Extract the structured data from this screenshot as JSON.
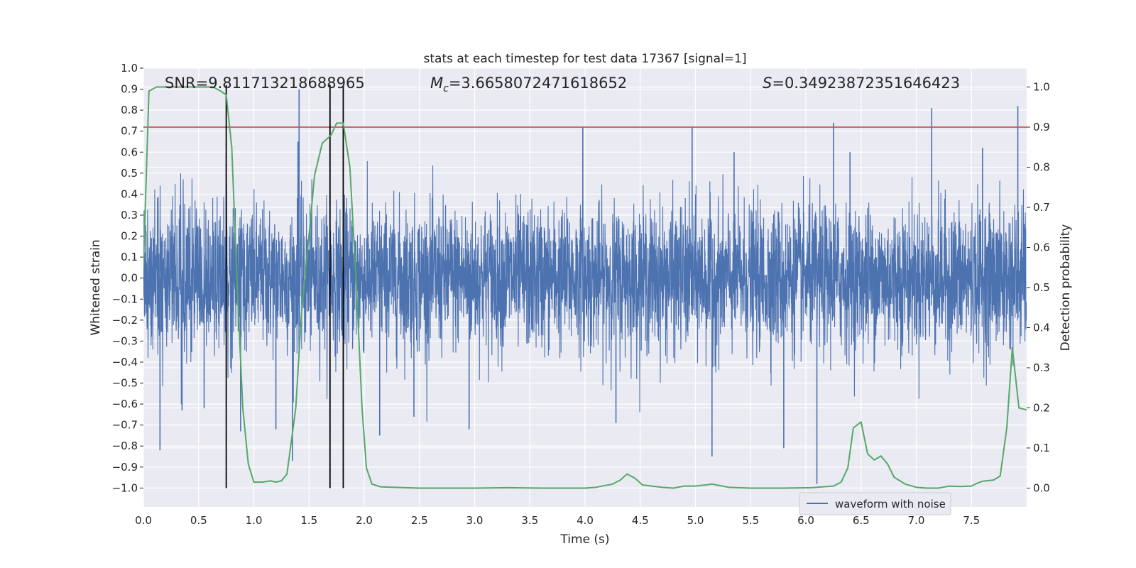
{
  "chart_data": {
    "type": "line",
    "title": "stats at each timestep for test data 17367 [signal=1]",
    "xlabel": "Time (s)",
    "ylabel": "Whitened strain",
    "y2label": "Detection probability",
    "xlim": [
      0,
      8
    ],
    "ylim": [
      -1.09,
      1.0
    ],
    "y2lim": [
      -0.047,
      1.047
    ],
    "grid": true,
    "legend_placement": "bottom-right",
    "xticks": [
      "0.0",
      "0.5",
      "1.0",
      "1.5",
      "2.0",
      "2.5",
      "3.0",
      "3.5",
      "4.0",
      "4.5",
      "5.0",
      "5.5",
      "6.0",
      "6.5",
      "7.0",
      "7.5"
    ],
    "yticks": [
      "1.0",
      "0.9",
      "0.8",
      "0.7",
      "0.6",
      "0.5",
      "0.4",
      "0.3",
      "0.2",
      "0.1",
      "0.0",
      "−0.1",
      "−0.2",
      "−0.3",
      "−0.4",
      "−0.5",
      "−0.6",
      "−0.7",
      "−0.8",
      "−0.9",
      "−1.0"
    ],
    "y2ticks": [
      "1.0",
      "0.9",
      "0.8",
      "0.7",
      "0.6",
      "0.5",
      "0.4",
      "0.3",
      "0.2",
      "0.1",
      "0.0"
    ],
    "annotations": {
      "snr": "SNR=9.811713218688965",
      "mc_symbol": "M",
      "mc_sub": "c",
      "mc_value": "=3.6658072471618652",
      "s_symbol": "S",
      "s_value": "=0.34923872351646423"
    },
    "threshold": {
      "axis": "y2",
      "value": 0.9,
      "color": "#c44e52"
    },
    "vertical_lines": [
      0.75,
      1.69,
      1.81
    ],
    "series": [
      {
        "name": "waveform with noise",
        "axis": "y",
        "color": "#4c72b0",
        "note": "dense noisy strain trace, envelope approx ±0.3 with spikes",
        "spikes": [
          {
            "t": 0.15,
            "v": -0.82
          },
          {
            "t": 0.35,
            "v": -0.63
          },
          {
            "t": 0.55,
            "v": -0.62
          },
          {
            "t": 0.75,
            "v": 0.6
          },
          {
            "t": 0.88,
            "v": -0.73
          },
          {
            "t": 1.2,
            "v": -0.72
          },
          {
            "t": 1.35,
            "v": -0.87
          },
          {
            "t": 1.41,
            "v": 0.9
          },
          {
            "t": 1.4,
            "v": 0.65
          },
          {
            "t": 2.14,
            "v": -0.75
          },
          {
            "t": 2.45,
            "v": -0.66
          },
          {
            "t": 2.95,
            "v": -0.72
          },
          {
            "t": 3.98,
            "v": 0.72
          },
          {
            "t": 4.28,
            "v": -0.69
          },
          {
            "t": 4.97,
            "v": 0.72
          },
          {
            "t": 5.15,
            "v": -0.85
          },
          {
            "t": 5.8,
            "v": -0.81
          },
          {
            "t": 5.35,
            "v": 0.6
          },
          {
            "t": 6.1,
            "v": -0.98
          },
          {
            "t": 6.25,
            "v": 0.74
          },
          {
            "t": 7.14,
            "v": 0.81
          },
          {
            "t": 7.92,
            "v": 0.82
          },
          {
            "t": 6.4,
            "v": 0.6
          },
          {
            "t": 7.6,
            "v": 0.62
          }
        ]
      },
      {
        "name": "",
        "axis": "y2",
        "color": "#55a868",
        "points": [
          [
            0.0,
            0.55
          ],
          [
            0.05,
            0.99
          ],
          [
            0.12,
            1.0
          ],
          [
            0.3,
            1.0
          ],
          [
            0.5,
            1.0
          ],
          [
            0.63,
            1.0
          ],
          [
            0.7,
            0.99
          ],
          [
            0.75,
            0.98
          ],
          [
            0.8,
            0.85
          ],
          [
            0.85,
            0.5
          ],
          [
            0.9,
            0.2
          ],
          [
            0.95,
            0.06
          ],
          [
            1.0,
            0.015
          ],
          [
            1.08,
            0.015
          ],
          [
            1.15,
            0.018
          ],
          [
            1.2,
            0.015
          ],
          [
            1.25,
            0.018
          ],
          [
            1.3,
            0.035
          ],
          [
            1.38,
            0.2
          ],
          [
            1.43,
            0.43
          ],
          [
            1.5,
            0.63
          ],
          [
            1.55,
            0.78
          ],
          [
            1.62,
            0.86
          ],
          [
            1.7,
            0.88
          ],
          [
            1.75,
            0.91
          ],
          [
            1.81,
            0.91
          ],
          [
            1.87,
            0.8
          ],
          [
            1.93,
            0.5
          ],
          [
            1.98,
            0.2
          ],
          [
            2.02,
            0.05
          ],
          [
            2.07,
            0.01
          ],
          [
            2.15,
            0.003
          ],
          [
            2.5,
            0.0
          ],
          [
            3.0,
            0.0
          ],
          [
            3.3,
            0.001
          ],
          [
            3.6,
            0.0
          ],
          [
            4.0,
            0.0
          ],
          [
            4.1,
            0.002
          ],
          [
            4.25,
            0.01
          ],
          [
            4.32,
            0.02
          ],
          [
            4.38,
            0.035
          ],
          [
            4.45,
            0.025
          ],
          [
            4.52,
            0.008
          ],
          [
            4.6,
            0.005
          ],
          [
            4.7,
            0.002
          ],
          [
            4.8,
            0.0
          ],
          [
            4.9,
            0.005
          ],
          [
            5.0,
            0.005
          ],
          [
            5.1,
            0.008
          ],
          [
            5.15,
            0.01
          ],
          [
            5.3,
            0.002
          ],
          [
            5.5,
            0.0
          ],
          [
            5.8,
            0.0
          ],
          [
            6.05,
            0.001
          ],
          [
            6.15,
            0.003
          ],
          [
            6.25,
            0.005
          ],
          [
            6.32,
            0.015
          ],
          [
            6.38,
            0.05
          ],
          [
            6.43,
            0.15
          ],
          [
            6.5,
            0.165
          ],
          [
            6.56,
            0.085
          ],
          [
            6.62,
            0.07
          ],
          [
            6.68,
            0.08
          ],
          [
            6.74,
            0.06
          ],
          [
            6.8,
            0.027
          ],
          [
            6.9,
            0.01
          ],
          [
            7.0,
            0.002
          ],
          [
            7.1,
            0.0
          ],
          [
            7.2,
            0.0
          ],
          [
            7.3,
            0.005
          ],
          [
            7.4,
            0.004
          ],
          [
            7.5,
            0.005
          ],
          [
            7.55,
            0.012
          ],
          [
            7.6,
            0.017
          ],
          [
            7.7,
            0.02
          ],
          [
            7.76,
            0.03
          ],
          [
            7.82,
            0.15
          ],
          [
            7.87,
            0.35
          ],
          [
            7.93,
            0.2
          ],
          [
            8.0,
            0.195
          ]
        ]
      }
    ]
  }
}
